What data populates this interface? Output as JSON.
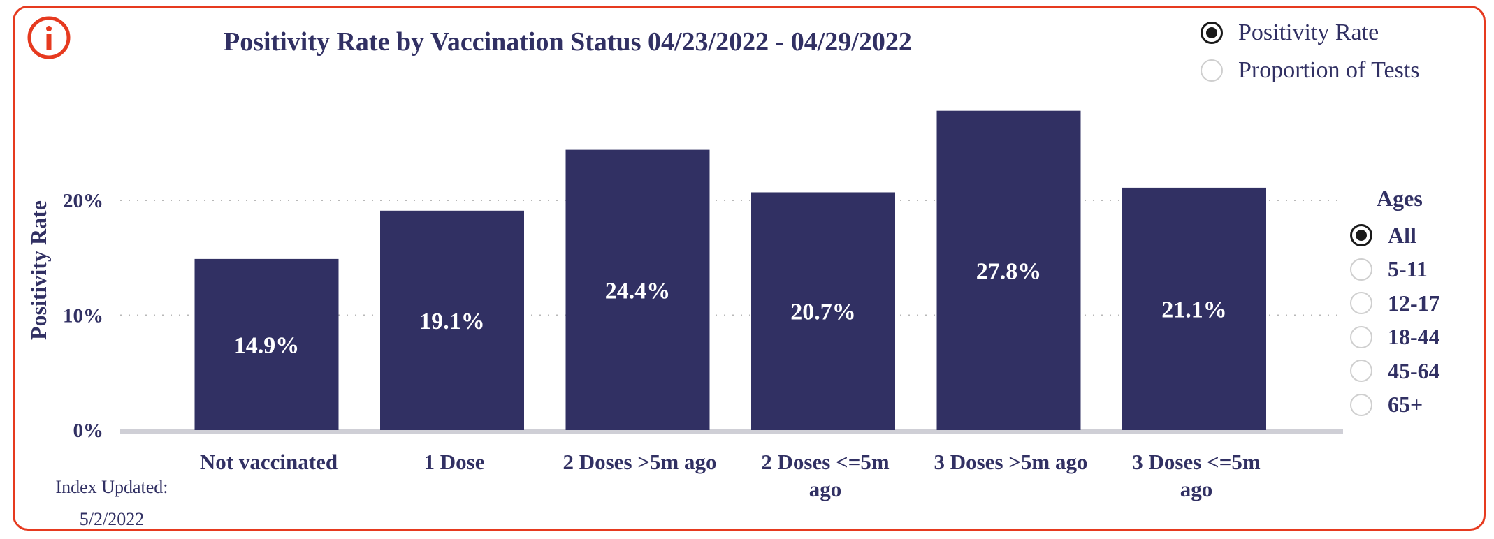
{
  "title": "Positivity Rate by Vaccination Status 04/23/2022 - 04/29/2022",
  "metric_options": [
    {
      "label": "Positivity Rate",
      "selected": true
    },
    {
      "label": "Proportion of Tests",
      "selected": false
    }
  ],
  "ages": {
    "title": "Ages",
    "options": [
      {
        "label": "All",
        "selected": true
      },
      {
        "label": "5-11",
        "selected": false
      },
      {
        "label": "12-17",
        "selected": false
      },
      {
        "label": "18-44",
        "selected": false
      },
      {
        "label": "45-64",
        "selected": false
      },
      {
        "label": "65+",
        "selected": false
      }
    ]
  },
  "index_updated": {
    "label": "Index Updated:",
    "date": "5/2/2022"
  },
  "colors": {
    "bar": "#313063",
    "frame": "#e63a1f",
    "text": "#313063"
  },
  "chart_data": {
    "type": "bar",
    "categories": [
      [
        "Not vaccinated"
      ],
      [
        "1 Dose"
      ],
      [
        "2 Doses >5m ago"
      ],
      [
        "2 Doses <=5m",
        "ago"
      ],
      [
        "3 Doses >5m ago"
      ],
      [
        "3 Doses <=5m",
        "ago"
      ]
    ],
    "values": [
      14.9,
      19.1,
      24.4,
      20.7,
      27.8,
      21.1
    ],
    "data_labels": [
      "14.9%",
      "19.1%",
      "24.4%",
      "20.7%",
      "27.8%",
      "21.1%"
    ],
    "ylabel": "Positivity Rate",
    "yticks": [
      {
        "value": 0,
        "label": "0%"
      },
      {
        "value": 10,
        "label": "10%"
      },
      {
        "value": 20,
        "label": "20%"
      }
    ],
    "ylim": [
      0,
      30
    ],
    "grid": true
  }
}
